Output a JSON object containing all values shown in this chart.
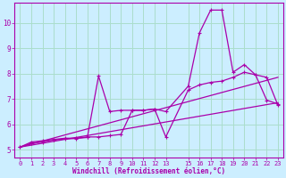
{
  "bg_color": "#cceeff",
  "grid_color": "#aaddcc",
  "line_color": "#aa00aa",
  "xlabel": "Windchill (Refroidissement éolien,°C)",
  "xlim": [
    -0.5,
    23.5
  ],
  "ylim": [
    4.7,
    10.8
  ],
  "yticks": [
    5,
    6,
    7,
    8,
    9,
    10
  ],
  "xticks": [
    0,
    1,
    2,
    3,
    4,
    5,
    6,
    7,
    8,
    9,
    10,
    11,
    12,
    13,
    15,
    16,
    17,
    18,
    19,
    20,
    21,
    22,
    23
  ],
  "series_jagged1_x": [
    0,
    1,
    2,
    3,
    4,
    5,
    6,
    7,
    8,
    9,
    10,
    11,
    12,
    13,
    15,
    16,
    17,
    18,
    19,
    20,
    21,
    22,
    23
  ],
  "series_jagged1_y": [
    5.1,
    5.3,
    5.35,
    5.4,
    5.45,
    5.45,
    5.5,
    5.5,
    5.55,
    5.6,
    6.55,
    6.55,
    6.6,
    6.5,
    7.5,
    9.6,
    10.5,
    10.5,
    8.05,
    8.35,
    7.95,
    6.95,
    6.8
  ],
  "series_jagged2_x": [
    0,
    1,
    2,
    3,
    4,
    5,
    6,
    7,
    8,
    9,
    10,
    11,
    12,
    13,
    15,
    16,
    17,
    18,
    19,
    20,
    21,
    22,
    23
  ],
  "series_jagged2_y": [
    5.1,
    5.25,
    5.3,
    5.38,
    5.42,
    5.44,
    5.48,
    7.9,
    6.5,
    6.55,
    6.55,
    6.55,
    6.6,
    5.5,
    7.35,
    7.55,
    7.65,
    7.7,
    7.85,
    8.05,
    7.95,
    7.85,
    6.75
  ],
  "series_line1_x": [
    0,
    23
  ],
  "series_line1_y": [
    5.1,
    6.85
  ],
  "series_line2_x": [
    0,
    23
  ],
  "series_line2_y": [
    5.1,
    7.85
  ]
}
